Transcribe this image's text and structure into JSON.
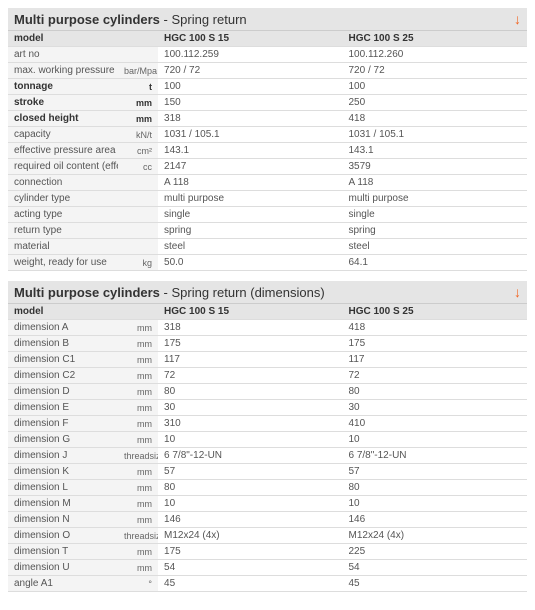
{
  "table1": {
    "title_bold": "Multi purpose cylinders",
    "title_light": " - Spring return",
    "header_label": "model",
    "columns": [
      "HGC 100 S 15",
      "HGC 100 S 25"
    ],
    "rows": [
      {
        "label": "art no",
        "unit": "",
        "v": [
          "100.112.259",
          "100.112.260"
        ],
        "bold": false
      },
      {
        "label": "max. working pressure",
        "unit": "bar/Mpa",
        "v": [
          "720 / 72",
          "720 / 72"
        ],
        "bold": false
      },
      {
        "label": "tonnage",
        "unit": "t",
        "v": [
          "100",
          "100"
        ],
        "bold": true
      },
      {
        "label": "stroke",
        "unit": "mm",
        "v": [
          "150",
          "250"
        ],
        "bold": true
      },
      {
        "label": "closed height",
        "unit": "mm",
        "v": [
          "318",
          "418"
        ],
        "bold": true
      },
      {
        "label": "capacity",
        "unit": "kN/t",
        "v": [
          "1031 / 105.1",
          "1031 / 105.1"
        ],
        "bold": false
      },
      {
        "label": "effective pressure area",
        "unit": "cm²",
        "v": [
          "143.1",
          "143.1"
        ],
        "bold": false
      },
      {
        "label": "required oil content (effective)",
        "unit": "cc",
        "v": [
          "2147",
          "3579"
        ],
        "bold": false
      },
      {
        "label": "connection",
        "unit": "",
        "v": [
          "A 118",
          "A 118"
        ],
        "bold": false
      },
      {
        "label": "cylinder type",
        "unit": "",
        "v": [
          "multi purpose",
          "multi purpose"
        ],
        "bold": false
      },
      {
        "label": "acting type",
        "unit": "",
        "v": [
          "single",
          "single"
        ],
        "bold": false
      },
      {
        "label": "return type",
        "unit": "",
        "v": [
          "spring",
          "spring"
        ],
        "bold": false
      },
      {
        "label": "material",
        "unit": "",
        "v": [
          "steel",
          "steel"
        ],
        "bold": false
      },
      {
        "label": "weight, ready for use",
        "unit": "kg",
        "v": [
          "50.0",
          "64.1"
        ],
        "bold": false
      }
    ]
  },
  "table2": {
    "title_bold": "Multi purpose cylinders",
    "title_light": " - Spring return (dimensions)",
    "header_label": "model",
    "columns": [
      "HGC 100 S 15",
      "HGC 100 S 25"
    ],
    "rows": [
      {
        "label": "dimension A",
        "unit": "mm",
        "v": [
          "318",
          "418"
        ],
        "bold": false
      },
      {
        "label": "dimension B",
        "unit": "mm",
        "v": [
          "175",
          "175"
        ],
        "bold": false
      },
      {
        "label": "dimension C1",
        "unit": "mm",
        "v": [
          "117",
          "117"
        ],
        "bold": false
      },
      {
        "label": "dimension C2",
        "unit": "mm",
        "v": [
          "72",
          "72"
        ],
        "bold": false
      },
      {
        "label": "dimension D",
        "unit": "mm",
        "v": [
          "80",
          "80"
        ],
        "bold": false
      },
      {
        "label": "dimension E",
        "unit": "mm",
        "v": [
          "30",
          "30"
        ],
        "bold": false
      },
      {
        "label": "dimension F",
        "unit": "mm",
        "v": [
          "310",
          "410"
        ],
        "bold": false
      },
      {
        "label": "dimension G",
        "unit": "mm",
        "v": [
          "10",
          "10"
        ],
        "bold": false
      },
      {
        "label": "dimension J",
        "unit": "threadsize",
        "v": [
          "6 7/8\"-12-UN",
          "6 7/8\"-12-UN"
        ],
        "bold": false
      },
      {
        "label": "dimension K",
        "unit": "mm",
        "v": [
          "57",
          "57"
        ],
        "bold": false
      },
      {
        "label": "dimension L",
        "unit": "mm",
        "v": [
          "80",
          "80"
        ],
        "bold": false
      },
      {
        "label": "dimension M",
        "unit": "mm",
        "v": [
          "10",
          "10"
        ],
        "bold": false
      },
      {
        "label": "dimension N",
        "unit": "mm",
        "v": [
          "146",
          "146"
        ],
        "bold": false
      },
      {
        "label": "dimension O",
        "unit": "threadsize",
        "v": [
          "M12x24 (4x)",
          "M12x24 (4x)"
        ],
        "bold": false
      },
      {
        "label": "dimension T",
        "unit": "mm",
        "v": [
          "175",
          "225"
        ],
        "bold": false
      },
      {
        "label": "dimension U",
        "unit": "mm",
        "v": [
          "54",
          "54"
        ],
        "bold": false
      },
      {
        "label": "angle A1",
        "unit": "°",
        "v": [
          "45",
          "45"
        ],
        "bold": false
      }
    ]
  }
}
